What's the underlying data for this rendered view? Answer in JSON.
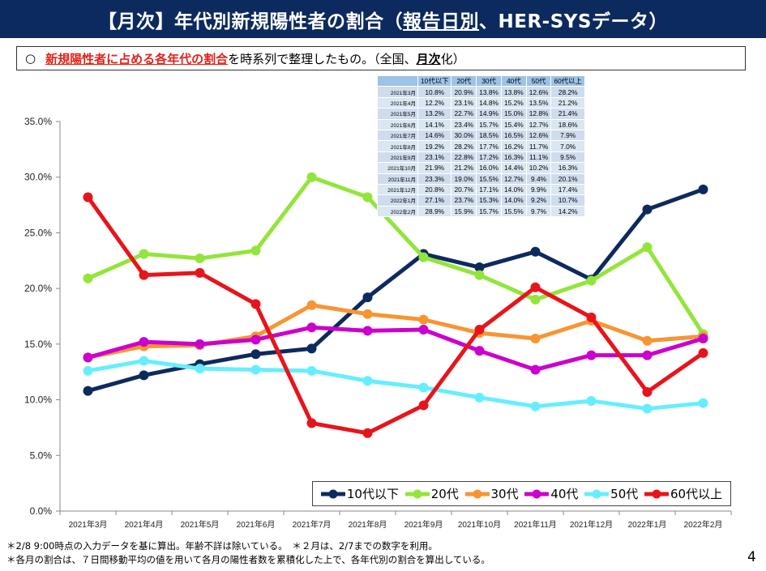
{
  "header": {
    "title_before": "【月次】年代別新規陽性者の割合（",
    "title_underlined": "報告日別",
    "title_after": "、HER-SYSデータ）"
  },
  "subtitle": {
    "bullet": "○",
    "highlight": "新規陽性者に占める各年代の割合",
    "middle": "を時系列で整理したもの。（全国、",
    "bold": "月次",
    "end": "化）"
  },
  "chart_data": {
    "type": "line",
    "categories": [
      "2021年3月",
      "2021年4月",
      "2021年5月",
      "2021年6月",
      "2021年7月",
      "2021年8月",
      "2021年9月",
      "2021年10月",
      "2021年11月",
      "2021年12月",
      "2022年1月",
      "2022年2月"
    ],
    "y_ticks": [
      "0.0%",
      "5.0%",
      "10.0%",
      "15.0%",
      "20.0%",
      "25.0%",
      "30.0%",
      "35.0%"
    ],
    "ylim": [
      0,
      35
    ],
    "grid": false,
    "legend_position": "bottom-right",
    "series": [
      {
        "name": "10代以下",
        "color": "#0d2a5e",
        "values": [
          10.8,
          12.2,
          13.2,
          14.1,
          14.6,
          19.2,
          23.1,
          21.9,
          23.3,
          20.8,
          27.1,
          28.9
        ]
      },
      {
        "name": "20代",
        "color": "#92e53a",
        "values": [
          20.9,
          23.1,
          22.7,
          23.4,
          30.0,
          28.2,
          22.8,
          21.2,
          19.0,
          20.7,
          23.7,
          15.9
        ]
      },
      {
        "name": "30代",
        "color": "#f79533",
        "values": [
          13.8,
          14.8,
          14.9,
          15.7,
          18.5,
          17.7,
          17.2,
          16.0,
          15.5,
          17.1,
          15.3,
          15.7
        ]
      },
      {
        "name": "40代",
        "color": "#cc00cc",
        "values": [
          13.8,
          15.2,
          15.0,
          15.4,
          16.5,
          16.2,
          16.3,
          14.4,
          12.7,
          14.0,
          14.0,
          15.5
        ]
      },
      {
        "name": "50代",
        "color": "#66eeff",
        "values": [
          12.6,
          13.5,
          12.8,
          12.7,
          12.6,
          11.7,
          11.1,
          10.2,
          9.4,
          9.9,
          9.2,
          9.7
        ]
      },
      {
        "name": "60代以上",
        "color": "#e8141b",
        "values": [
          28.2,
          21.2,
          21.4,
          18.6,
          7.9,
          7.0,
          9.5,
          16.3,
          20.1,
          17.4,
          10.7,
          14.2
        ]
      }
    ]
  },
  "table": {
    "headers": [
      "10代以下",
      "20代",
      "30代",
      "40代",
      "50代",
      "60代以上"
    ],
    "rows": [
      {
        "month": "2021年3月",
        "cells": [
          "10.8%",
          "20.9%",
          "13.8%",
          "13.8%",
          "12.6%",
          "28.2%"
        ]
      },
      {
        "month": "2021年4月",
        "cells": [
          "12.2%",
          "23.1%",
          "14.8%",
          "15.2%",
          "13.5%",
          "21.2%"
        ]
      },
      {
        "month": "2021年5月",
        "cells": [
          "13.2%",
          "22.7%",
          "14.9%",
          "15.0%",
          "12.8%",
          "21.4%"
        ]
      },
      {
        "month": "2021年6月",
        "cells": [
          "14.1%",
          "23.4%",
          "15.7%",
          "15.4%",
          "12.7%",
          "18.6%"
        ]
      },
      {
        "month": "2021年7月",
        "cells": [
          "14.6%",
          "30.0%",
          "18.5%",
          "16.5%",
          "12.6%",
          "7.9%"
        ]
      },
      {
        "month": "2021年8月",
        "cells": [
          "19.2%",
          "28.2%",
          "17.7%",
          "16.2%",
          "11.7%",
          "7.0%"
        ]
      },
      {
        "month": "2021年9月",
        "cells": [
          "23.1%",
          "22.8%",
          "17.2%",
          "16.3%",
          "11.1%",
          "9.5%"
        ]
      },
      {
        "month": "2021年10月",
        "cells": [
          "21.9%",
          "21.2%",
          "16.0%",
          "14.4%",
          "10.2%",
          "16.3%"
        ]
      },
      {
        "month": "2021年11月",
        "cells": [
          "23.3%",
          "19.0%",
          "15.5%",
          "12.7%",
          "9.4%",
          "20.1%"
        ]
      },
      {
        "month": "2021年12月",
        "cells": [
          "20.8%",
          "20.7%",
          "17.1%",
          "14.0%",
          "9.9%",
          "17.4%"
        ]
      },
      {
        "month": "2022年1月",
        "cells": [
          "27.1%",
          "23.7%",
          "15.3%",
          "14.0%",
          "9.2%",
          "10.7%"
        ]
      },
      {
        "month": "2022年2月",
        "cells": [
          "28.9%",
          "15.9%",
          "15.7%",
          "15.5%",
          "9.7%",
          "14.2%"
        ]
      }
    ]
  },
  "footnotes": {
    "line1": "＊2/8 9:00時点の入力データを基に算出。年齢不詳は除いている。　＊２月は、2/7までの数字を利用。",
    "line2": "＊各月の割合は、７日間移動平均の値を用いて各月の陽性者数を累積化した上で、各年代別の割合を算出している。"
  },
  "page_number": "4"
}
